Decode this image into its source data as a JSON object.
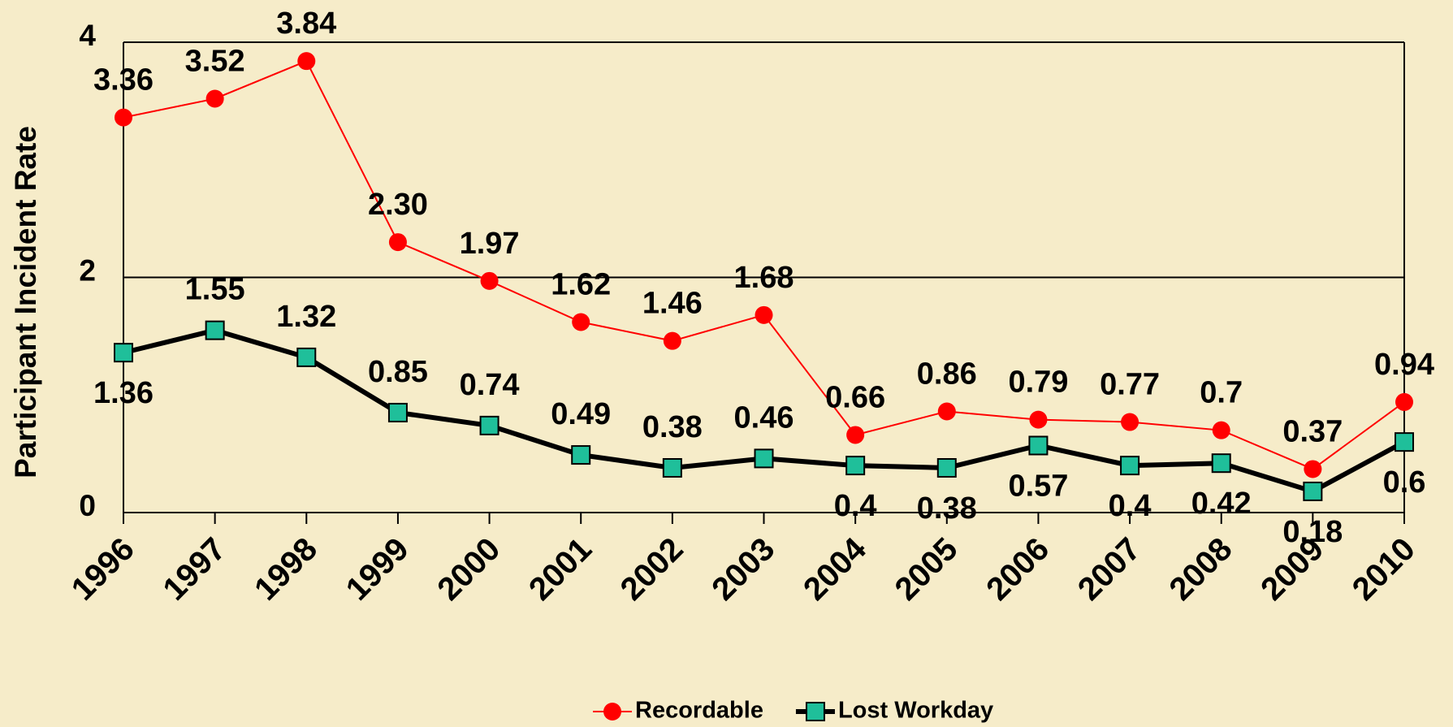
{
  "chart_data": {
    "type": "line",
    "y_label": "Participant Incident Rate",
    "categories": [
      "1996",
      "1997",
      "1998",
      "1999",
      "2000",
      "2001",
      "2002",
      "2003",
      "2004",
      "2005",
      "2006",
      "2007",
      "2008",
      "2009",
      "2010"
    ],
    "series": [
      {
        "name": "Recordable",
        "color": "#ff0000",
        "marker": "circle",
        "values": [
          3.36,
          3.52,
          3.84,
          2.3,
          1.97,
          1.62,
          1.46,
          1.68,
          0.66,
          0.86,
          0.79,
          0.77,
          0.7,
          0.37,
          0.94
        ],
        "value_labels": [
          "3.36",
          "3.52",
          "3.84",
          "2.30",
          "1.97",
          "1.62",
          "1.46",
          "1.68",
          "0.66",
          "0.86",
          "0.79",
          "0.77",
          "0.7",
          "0.37",
          "0.94"
        ]
      },
      {
        "name": "Lost Workday",
        "color": "#000000",
        "marker_color": "#1fbf9a",
        "marker": "square",
        "values": [
          1.36,
          1.55,
          1.32,
          0.85,
          0.74,
          0.49,
          0.38,
          0.46,
          0.4,
          0.38,
          0.57,
          0.4,
          0.42,
          0.18,
          0.6
        ]
      }
    ],
    "ylim": [
      0,
      4
    ],
    "yticks": [
      0,
      2,
      4
    ],
    "grid": true,
    "legend": "bottom"
  }
}
